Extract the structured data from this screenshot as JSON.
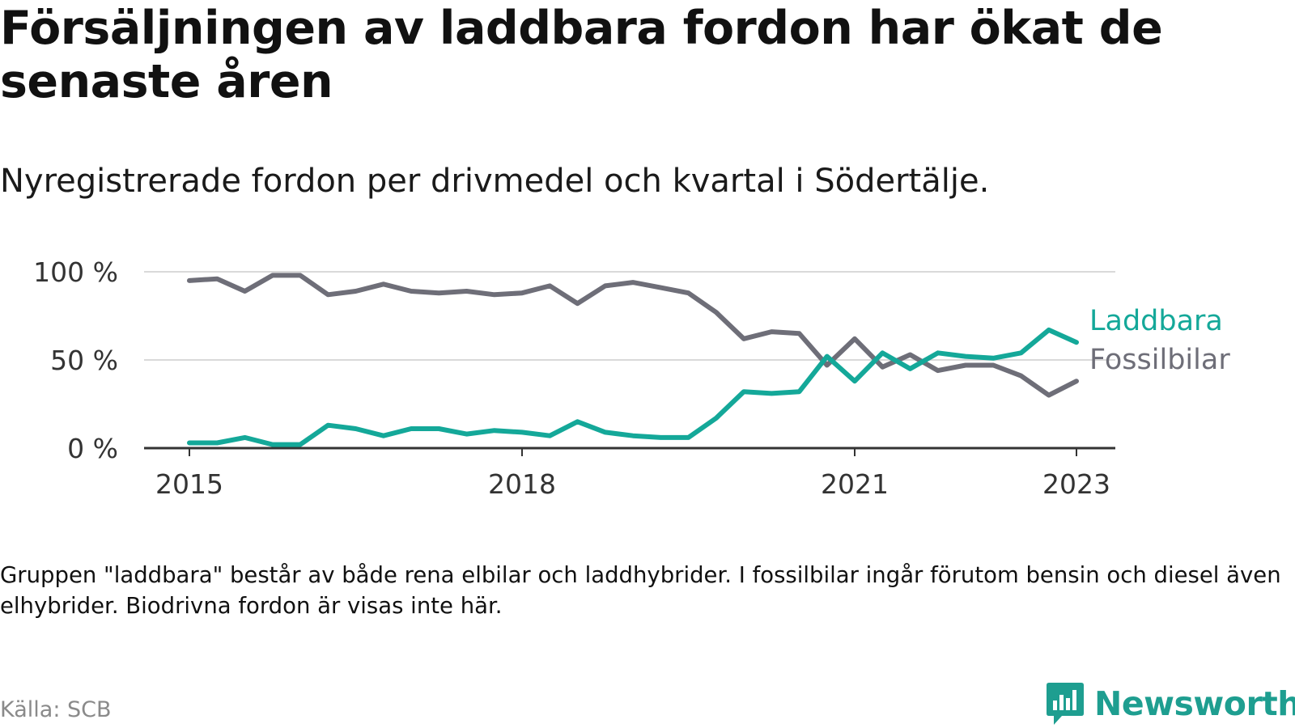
{
  "title": "Försäljningen av laddbara fordon har ökat de senaste åren",
  "subtitle": "Nyregistrerade fordon per drivmedel och kvartal i Södertälje.",
  "note": "Gruppen \"laddbara\" består av både rena elbilar och laddhybrider. I fossilbilar ingår förutom bensin och diesel även elhybrider. Biodrivna fordon är visas inte här.",
  "source": "Källa: SCB",
  "brand": "Newsworthy",
  "colors": {
    "laddbara": "#14a899",
    "fossil": "#6e6e78",
    "grid": "#d9d9d9",
    "axis": "#333333"
  },
  "chart_data": {
    "type": "line",
    "title": "Försäljningen av laddbara fordon har ökat de senaste åren",
    "xlabel": "",
    "ylabel": "",
    "ylim": [
      0,
      100
    ],
    "xlim": [
      2015.0,
      2023.0
    ],
    "x_ticks": [
      {
        "value": 2015,
        "label": "2015"
      },
      {
        "value": 2018,
        "label": "2018"
      },
      {
        "value": 2021,
        "label": "2021"
      },
      {
        "value": 2023,
        "label": "2023"
      }
    ],
    "y_ticks": [
      {
        "value": 0,
        "label": "0 %"
      },
      {
        "value": 50,
        "label": "50 %"
      },
      {
        "value": 100,
        "label": "100 %"
      }
    ],
    "x": [
      2015.0,
      2015.25,
      2015.5,
      2015.75,
      2016.0,
      2016.25,
      2016.5,
      2016.75,
      2017.0,
      2017.25,
      2017.5,
      2017.75,
      2018.0,
      2018.25,
      2018.5,
      2018.75,
      2019.0,
      2019.25,
      2019.5,
      2019.75,
      2020.0,
      2020.25,
      2020.5,
      2020.75,
      2021.0,
      2021.25,
      2021.5,
      2021.75,
      2022.0,
      2022.25,
      2022.5,
      2022.75,
      2023.0
    ],
    "series": [
      {
        "name": "Laddbara",
        "color": "#14a899",
        "values": [
          3,
          3,
          6,
          2,
          2,
          13,
          11,
          7,
          11,
          11,
          8,
          10,
          9,
          7,
          15,
          9,
          7,
          6,
          6,
          17,
          32,
          31,
          32,
          52,
          38,
          54,
          45,
          54,
          52,
          51,
          54,
          67,
          60
        ]
      },
      {
        "name": "Fossilbilar",
        "color": "#6e6e78",
        "values": [
          95,
          96,
          89,
          98,
          98,
          87,
          89,
          93,
          89,
          88,
          89,
          87,
          88,
          92,
          82,
          92,
          94,
          91,
          88,
          77,
          62,
          66,
          65,
          47,
          62,
          46,
          53,
          44,
          47,
          47,
          41,
          30,
          38
        ]
      }
    ]
  }
}
